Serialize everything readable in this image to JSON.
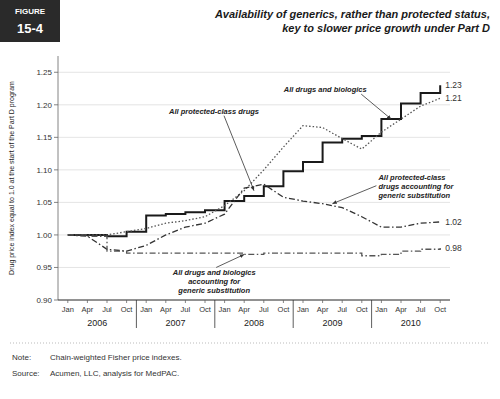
{
  "chart_data": {
    "type": "line",
    "title": "Availability of generics, rather than protected status,\nkey to slower price growth under Part D",
    "y_label": "Drug price index equal to 1.0 at the start of the Part D program",
    "categories": [
      "Jan",
      "Apr",
      "Jul",
      "Oct",
      "Jan",
      "Apr",
      "Jul",
      "Oct",
      "Jan",
      "Apr",
      "Jul",
      "Oct",
      "Jan",
      "Apr",
      "Jul",
      "Oct",
      "Jan",
      "Apr",
      "Jul",
      "Oct"
    ],
    "category_groups": [
      "2006",
      "2007",
      "2008",
      "2009",
      "2010"
    ],
    "ylim": [
      0.9,
      1.275
    ],
    "yticks": [
      {
        "value": 0.9,
        "label": "0.90"
      },
      0.95,
      {
        "value": 1.0,
        "label": "1.00"
      },
      1.05,
      {
        "value": 1.1,
        "label": "1.10"
      },
      1.15,
      {
        "value": 1.2,
        "label": "1.20"
      },
      1.25
    ],
    "grid": true,
    "annotations": [
      "FIGURE",
      "15-4",
      "Note:",
      "Chain-weighted Fisher price indexes.",
      "Source:",
      "Acumen, LLC, analysis for MedPAC."
    ],
    "series": [
      {
        "name": "All drugs and biologics",
        "color": "#1a1a1a",
        "type": "step",
        "line_style": "solid",
        "values": [
          1.0,
          1.0,
          0.998,
          1.005,
          1.03,
          1.032,
          1.035,
          1.038,
          1.052,
          1.06,
          1.075,
          1.098,
          1.112,
          1.142,
          1.148,
          1.152,
          1.178,
          1.202,
          1.218,
          1.23
        ],
        "value_labels": [
          null,
          null,
          null,
          null,
          null,
          null,
          null,
          null,
          null,
          null,
          null,
          null,
          null,
          null,
          null,
          null,
          null,
          null,
          null,
          "1.23"
        ]
      },
      {
        "name": "All protected-class drugs",
        "color": "#555555",
        "type": "line",
        "line_style": "dotted",
        "values": [
          1.0,
          1.0,
          1.0,
          1.005,
          1.01,
          1.018,
          1.022,
          1.028,
          1.045,
          1.068,
          1.1,
          1.135,
          1.168,
          1.165,
          1.148,
          1.132,
          1.158,
          1.178,
          1.198,
          1.21
        ],
        "value_labels": [
          null,
          null,
          null,
          null,
          null,
          null,
          null,
          null,
          null,
          null,
          null,
          null,
          null,
          null,
          null,
          null,
          null,
          null,
          null,
          "1.21"
        ]
      },
      {
        "name": "All protected-class\ndrugs accounting for\ngeneric substitution",
        "color": "#333333",
        "type": "line",
        "line_style": "dash-dot",
        "values": [
          1.0,
          0.998,
          0.978,
          0.975,
          0.984,
          1.0,
          1.012,
          1.018,
          1.032,
          1.072,
          1.078,
          1.058,
          1.052,
          1.048,
          1.042,
          1.028,
          1.012,
          1.012,
          1.018,
          1.02
        ],
        "value_labels": [
          null,
          null,
          null,
          null,
          null,
          null,
          null,
          null,
          null,
          null,
          null,
          null,
          null,
          null,
          null,
          null,
          null,
          null,
          null,
          "1.02"
        ]
      },
      {
        "name": "All drugs and biologics\naccounting for\ngeneric substitution",
        "color": "#555555",
        "type": "step",
        "line_style": "dash-dot",
        "values": [
          1.0,
          0.998,
          0.975,
          0.972,
          0.972,
          0.972,
          0.972,
          0.972,
          0.972,
          0.97,
          0.972,
          0.972,
          0.972,
          0.972,
          0.972,
          0.968,
          0.97,
          0.975,
          0.978,
          0.98
        ],
        "value_labels": [
          null,
          null,
          null,
          null,
          null,
          null,
          null,
          null,
          null,
          null,
          null,
          null,
          null,
          null,
          null,
          null,
          null,
          null,
          null,
          "0.98"
        ]
      }
    ]
  }
}
